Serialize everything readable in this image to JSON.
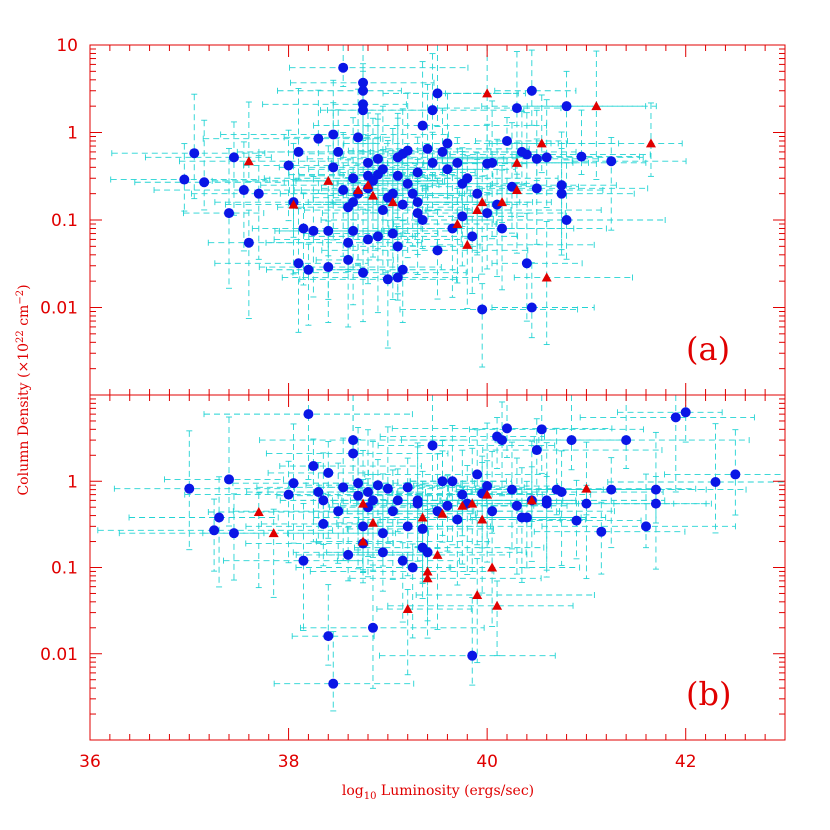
{
  "chart_data": [
    {
      "type": "scatter",
      "panel_label": "(a)",
      "xlabel_prefix": "log",
      "xlabel_sub": "10",
      "xlabel_rest": " Luminosity (ergs/sec)",
      "ylabel_main": "Column Density (×10",
      "ylabel_sup1": "22",
      "ylabel_mid": " cm",
      "ylabel_sup2": "−2",
      "ylabel_end": ")",
      "xlim": [
        36,
        43
      ],
      "ylim_log10": [
        -3,
        1
      ],
      "y_scale": "log",
      "x_ticks": [
        {
          "v": 36,
          "label": "36"
        },
        {
          "v": 38,
          "label": "38"
        },
        {
          "v": 40,
          "label": "40"
        },
        {
          "v": 42,
          "label": "42"
        }
      ],
      "y_ticks": [
        {
          "v": 10,
          "label": "10"
        },
        {
          "v": 1,
          "label": "1"
        },
        {
          "v": 0.1,
          "label": "0.1"
        },
        {
          "v": 0.01,
          "label": "0.01"
        }
      ],
      "colors": {
        "circle": "#0a16e6",
        "triangle": "#e00000",
        "error_bar": "#22d3d3",
        "axis": "#e00000"
      },
      "series": [
        {
          "marker": "circle",
          "points": [
            [
              36.95,
              0.29
            ],
            [
              37.15,
              0.27
            ],
            [
              37.05,
              0.58
            ],
            [
              37.45,
              0.52
            ],
            [
              37.55,
              0.22
            ],
            [
              37.4,
              0.12
            ],
            [
              37.6,
              0.055
            ],
            [
              37.7,
              0.2
            ],
            [
              38.0,
              0.42
            ],
            [
              38.05,
              0.16
            ],
            [
              38.1,
              0.6
            ],
            [
              38.15,
              0.08
            ],
            [
              38.1,
              0.032
            ],
            [
              38.2,
              0.027
            ],
            [
              38.25,
              0.075
            ],
            [
              38.3,
              0.85
            ],
            [
              38.4,
              0.029
            ],
            [
              38.4,
              0.075
            ],
            [
              38.45,
              0.4
            ],
            [
              38.45,
              0.95
            ],
            [
              38.5,
              0.6
            ],
            [
              38.55,
              0.22
            ],
            [
              38.55,
              5.5
            ],
            [
              38.6,
              0.055
            ],
            [
              38.6,
              0.14
            ],
            [
              38.65,
              0.075
            ],
            [
              38.6,
              0.035
            ],
            [
              38.65,
              0.3
            ],
            [
              38.65,
              0.16
            ],
            [
              38.7,
              0.2
            ],
            [
              38.7,
              0.88
            ],
            [
              38.75,
              1.8
            ],
            [
              38.75,
              2.1
            ],
            [
              38.75,
              3.0
            ],
            [
              38.75,
              3.7
            ],
            [
              38.75,
              0.025
            ],
            [
              38.8,
              0.06
            ],
            [
              38.8,
              0.45
            ],
            [
              38.8,
              0.23
            ],
            [
              38.8,
              0.32
            ],
            [
              38.85,
              0.28
            ],
            [
              38.9,
              0.33
            ],
            [
              38.9,
              0.5
            ],
            [
              38.95,
              0.38
            ],
            [
              38.95,
              0.13
            ],
            [
              38.9,
              0.065
            ],
            [
              39.0,
              0.021
            ],
            [
              39.0,
              0.18
            ],
            [
              39.05,
              0.2
            ],
            [
              39.05,
              0.07
            ],
            [
              39.1,
              0.05
            ],
            [
              39.1,
              0.022
            ],
            [
              39.1,
              0.32
            ],
            [
              39.1,
              0.52
            ],
            [
              39.15,
              0.57
            ],
            [
              39.15,
              0.15
            ],
            [
              39.15,
              0.027
            ],
            [
              39.2,
              0.62
            ],
            [
              39.2,
              0.26
            ],
            [
              39.25,
              0.2
            ],
            [
              39.3,
              0.16
            ],
            [
              39.3,
              0.35
            ],
            [
              39.3,
              0.12
            ],
            [
              39.35,
              1.2
            ],
            [
              39.35,
              0.1
            ],
            [
              39.4,
              0.65
            ],
            [
              39.45,
              0.45
            ],
            [
              39.45,
              1.8
            ],
            [
              39.5,
              2.8
            ],
            [
              39.5,
              0.045
            ],
            [
              39.55,
              0.6
            ],
            [
              39.6,
              0.75
            ],
            [
              39.6,
              0.38
            ],
            [
              39.65,
              0.08
            ],
            [
              39.7,
              0.45
            ],
            [
              39.75,
              0.26
            ],
            [
              39.75,
              0.11
            ],
            [
              39.8,
              0.3
            ],
            [
              39.85,
              0.065
            ],
            [
              39.9,
              0.2
            ],
            [
              39.95,
              0.0095
            ],
            [
              40.0,
              0.12
            ],
            [
              40.0,
              0.44
            ],
            [
              40.05,
              0.45
            ],
            [
              40.1,
              0.15
            ],
            [
              40.15,
              0.08
            ],
            [
              40.2,
              0.8
            ],
            [
              40.25,
              0.24
            ],
            [
              40.3,
              1.9
            ],
            [
              40.35,
              0.6
            ],
            [
              40.4,
              0.032
            ],
            [
              40.4,
              0.56
            ],
            [
              40.45,
              3.0
            ],
            [
              40.45,
              0.01
            ],
            [
              40.5,
              0.23
            ],
            [
              40.6,
              0.52
            ],
            [
              40.75,
              0.25
            ],
            [
              40.75,
              0.2
            ],
            [
              40.8,
              2.0
            ],
            [
              40.8,
              0.1
            ],
            [
              41.25,
              0.47
            ],
            [
              40.95,
              0.53
            ],
            [
              40.5,
              0.5
            ]
          ]
        },
        {
          "marker": "triangle",
          "points": [
            [
              37.6,
              0.47
            ],
            [
              38.05,
              0.15
            ],
            [
              38.4,
              0.28
            ],
            [
              38.7,
              0.22
            ],
            [
              38.8,
              0.25
            ],
            [
              38.85,
              0.19
            ],
            [
              39.05,
              0.16
            ],
            [
              39.7,
              0.09
            ],
            [
              39.8,
              0.052
            ],
            [
              39.9,
              0.13
            ],
            [
              39.95,
              0.16
            ],
            [
              40.0,
              2.8
            ],
            [
              40.15,
              0.16
            ],
            [
              40.3,
              0.45
            ],
            [
              40.3,
              0.22
            ],
            [
              40.55,
              0.75
            ],
            [
              40.6,
              0.022
            ],
            [
              41.1,
              2.0
            ],
            [
              41.65,
              0.75
            ]
          ]
        }
      ]
    },
    {
      "type": "scatter",
      "panel_label": "(b)",
      "xlim": [
        36,
        43
      ],
      "ylim_log10": [
        -3,
        1
      ],
      "y_scale": "log",
      "x_ticks": [
        {
          "v": 36,
          "label": "36"
        },
        {
          "v": 38,
          "label": "38"
        },
        {
          "v": 40,
          "label": "40"
        },
        {
          "v": 42,
          "label": "42"
        }
      ],
      "y_ticks": [
        {
          "v": 1,
          "label": "1"
        },
        {
          "v": 0.1,
          "label": "0.1"
        },
        {
          "v": 0.01,
          "label": "0.01"
        }
      ],
      "series": [
        {
          "marker": "circle",
          "points": [
            [
              37.0,
              0.82
            ],
            [
              37.25,
              0.27
            ],
            [
              37.3,
              0.38
            ],
            [
              37.4,
              1.05
            ],
            [
              37.45,
              0.25
            ],
            [
              38.0,
              0.7
            ],
            [
              38.05,
              0.95
            ],
            [
              38.15,
              0.12
            ],
            [
              38.2,
              6.0
            ],
            [
              38.25,
              1.5
            ],
            [
              38.3,
              0.75
            ],
            [
              38.35,
              0.32
            ],
            [
              38.35,
              0.6
            ],
            [
              38.4,
              1.25
            ],
            [
              38.4,
              0.016
            ],
            [
              38.45,
              0.0045
            ],
            [
              38.5,
              0.45
            ],
            [
              38.55,
              0.85
            ],
            [
              38.6,
              0.14
            ],
            [
              38.65,
              2.1
            ],
            [
              38.65,
              3.0
            ],
            [
              38.7,
              0.68
            ],
            [
              38.7,
              0.95
            ],
            [
              38.75,
              0.19
            ],
            [
              38.75,
              0.3
            ],
            [
              38.8,
              0.75
            ],
            [
              38.8,
              0.5
            ],
            [
              38.85,
              0.6
            ],
            [
              38.9,
              0.9
            ],
            [
              38.95,
              0.25
            ],
            [
              38.95,
              0.15
            ],
            [
              39.0,
              0.82
            ],
            [
              39.05,
              0.45
            ],
            [
              39.1,
              0.6
            ],
            [
              39.15,
              0.12
            ],
            [
              39.2,
              0.3
            ],
            [
              39.2,
              0.85
            ],
            [
              39.25,
              0.1
            ],
            [
              39.3,
              0.6
            ],
            [
              39.35,
              0.17
            ],
            [
              39.35,
              0.28
            ],
            [
              39.4,
              0.15
            ],
            [
              39.45,
              2.6
            ],
            [
              39.5,
              0.45
            ],
            [
              39.55,
              1.0
            ],
            [
              39.6,
              0.52
            ],
            [
              39.65,
              1.0
            ],
            [
              39.7,
              0.36
            ],
            [
              39.75,
              0.7
            ],
            [
              39.8,
              0.55
            ],
            [
              39.85,
              0.0095
            ],
            [
              39.9,
              1.2
            ],
            [
              39.95,
              0.72
            ],
            [
              40.0,
              0.88
            ],
            [
              40.05,
              0.45
            ],
            [
              40.1,
              3.3
            ],
            [
              40.15,
              3.0
            ],
            [
              40.2,
              4.1
            ],
            [
              40.25,
              0.8
            ],
            [
              40.3,
              0.52
            ],
            [
              40.35,
              0.38
            ],
            [
              40.4,
              0.38
            ],
            [
              40.45,
              0.6
            ],
            [
              40.5,
              2.3
            ],
            [
              40.55,
              4.0
            ],
            [
              40.6,
              0.55
            ],
            [
              40.7,
              0.8
            ],
            [
              40.75,
              0.75
            ],
            [
              40.85,
              3.0
            ],
            [
              40.9,
              0.35
            ],
            [
              41.0,
              0.55
            ],
            [
              41.15,
              0.26
            ],
            [
              41.25,
              0.8
            ],
            [
              41.4,
              3.0
            ],
            [
              41.6,
              0.3
            ],
            [
              41.7,
              0.55
            ],
            [
              41.9,
              5.5
            ],
            [
              42.0,
              6.3
            ],
            [
              42.3,
              0.98
            ],
            [
              42.5,
              1.2
            ],
            [
              41.7,
              0.8
            ],
            [
              39.3,
              0.55
            ],
            [
              38.85,
              0.02
            ],
            [
              40.6,
              0.6
            ]
          ]
        },
        {
          "marker": "triangle",
          "points": [
            [
              37.7,
              0.44
            ],
            [
              37.85,
              0.25
            ],
            [
              38.75,
              0.55
            ],
            [
              38.75,
              0.2
            ],
            [
              38.85,
              0.33
            ],
            [
              39.2,
              0.033
            ],
            [
              39.35,
              0.38
            ],
            [
              39.4,
              0.09
            ],
            [
              39.4,
              0.075
            ],
            [
              39.5,
              0.14
            ],
            [
              39.55,
              0.42
            ],
            [
              39.75,
              0.52
            ],
            [
              39.85,
              0.55
            ],
            [
              39.9,
              0.048
            ],
            [
              39.95,
              0.36
            ],
            [
              40.0,
              0.7
            ],
            [
              40.05,
              0.1
            ],
            [
              40.1,
              0.036
            ],
            [
              40.45,
              0.6
            ],
            [
              41.0,
              0.82
            ]
          ]
        }
      ]
    }
  ]
}
